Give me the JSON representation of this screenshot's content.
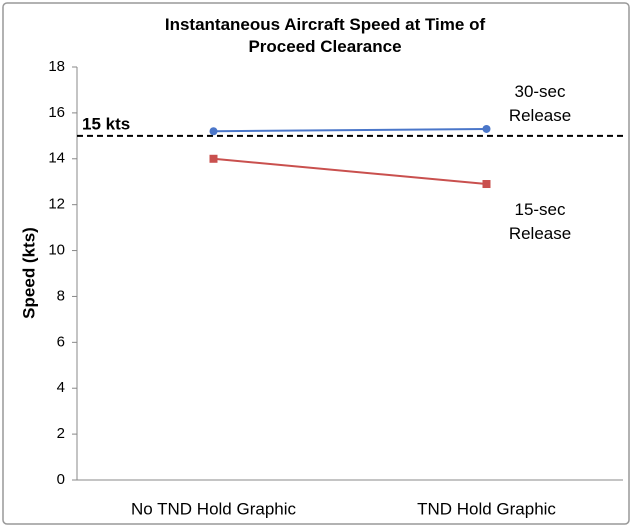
{
  "chart_data": {
    "type": "line",
    "title": "Instantaneous Aircraft Speed at Time of Proceed Clearance",
    "y_label": "Speed (kts)",
    "categories": [
      "No TND Hold Graphic",
      "TND Hold Graphic"
    ],
    "series": [
      {
        "name": "30-sec Release",
        "color": "#4a76c9",
        "marker": "circle",
        "values": [
          15.2,
          15.3
        ]
      },
      {
        "name": "15-sec Release",
        "color": "#c9504e",
        "marker": "square",
        "values": [
          14.0,
          12.9
        ]
      }
    ],
    "reference_line": {
      "value": 15,
      "label": "15 kts",
      "color": "#000000",
      "dashed": true
    },
    "ylim": [
      0,
      18
    ],
    "yticks": [
      0,
      2,
      4,
      6,
      8,
      10,
      12,
      14,
      16,
      18
    ],
    "grid": false
  }
}
